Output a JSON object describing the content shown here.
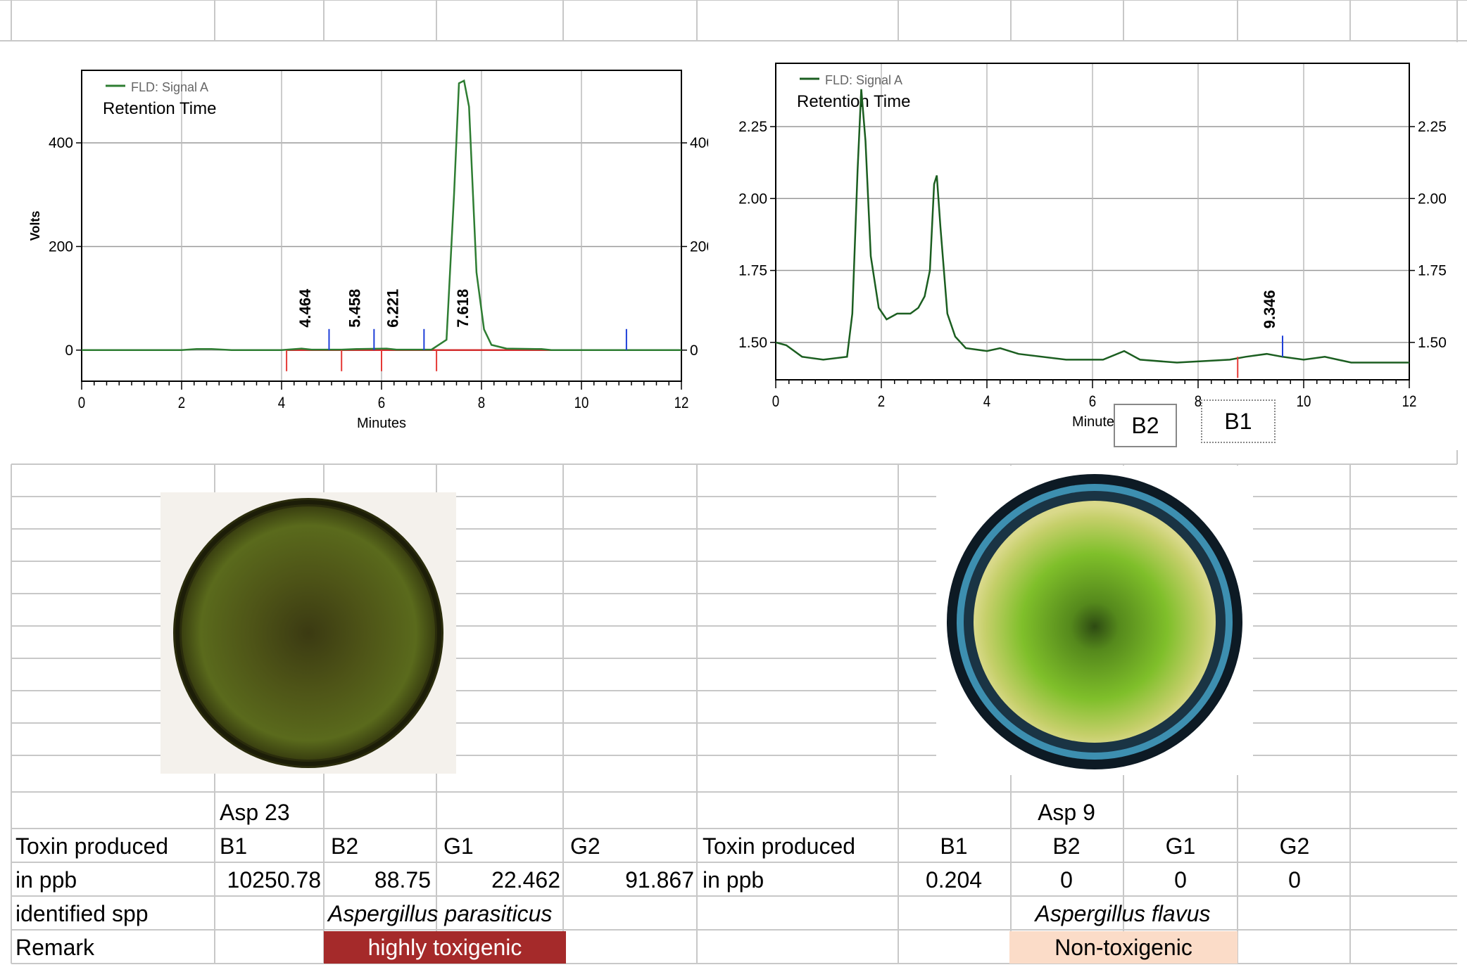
{
  "chart_data": [
    {
      "type": "line",
      "legend": "FLD: Signal A",
      "annotation": "Retention Time",
      "xlabel": "Minutes",
      "ylabel": "Volts",
      "xlim": [
        0,
        12
      ],
      "ylim": [
        -60,
        540
      ],
      "x_ticks": [
        0,
        2,
        4,
        6,
        8,
        10,
        12
      ],
      "y_ticks": [
        0,
        200,
        400
      ],
      "series_color": "#2e7d32",
      "peak_labels": [
        {
          "label": "4.464",
          "x": 4.464
        },
        {
          "label": "5.458",
          "x": 5.458
        },
        {
          "label": "6.221",
          "x": 6.221
        },
        {
          "label": "7.618",
          "x": 7.618
        }
      ],
      "red_markers_x": [
        4.1,
        5.2,
        6.0,
        7.1
      ],
      "blue_markers_x": [
        4.95,
        5.85,
        6.85,
        10.9
      ],
      "points": [
        [
          0,
          0
        ],
        [
          2,
          0
        ],
        [
          2.3,
          2
        ],
        [
          2.6,
          2
        ],
        [
          3,
          0
        ],
        [
          4,
          0
        ],
        [
          4.4,
          3
        ],
        [
          4.6,
          1
        ],
        [
          5.2,
          1
        ],
        [
          5.5,
          2
        ],
        [
          6.1,
          3
        ],
        [
          6.3,
          1
        ],
        [
          7.0,
          1
        ],
        [
          7.3,
          20
        ],
        [
          7.45,
          300
        ],
        [
          7.55,
          515
        ],
        [
          7.65,
          520
        ],
        [
          7.75,
          470
        ],
        [
          7.9,
          150
        ],
        [
          8.05,
          40
        ],
        [
          8.2,
          10
        ],
        [
          8.5,
          3
        ],
        [
          9.2,
          2
        ],
        [
          9.4,
          0
        ],
        [
          12,
          0
        ]
      ]
    },
    {
      "type": "line",
      "legend": "FLD: Signal A",
      "annotation": "Retention Time",
      "xlabel": "Minutes",
      "xlim": [
        0,
        12
      ],
      "ylim": [
        1.37,
        2.47
      ],
      "x_ticks": [
        0,
        2,
        4,
        6,
        8,
        10,
        12
      ],
      "y_ticks": [
        1.5,
        1.75,
        2.0,
        2.25
      ],
      "series_color": "#1b5e20",
      "peak_labels": [
        {
          "label": "9.346",
          "x": 9.346
        }
      ],
      "red_markers_x": [
        8.75
      ],
      "blue_markers_x": [
        9.6
      ],
      "points": [
        [
          0,
          1.5
        ],
        [
          0.2,
          1.49
        ],
        [
          0.5,
          1.45
        ],
        [
          0.9,
          1.44
        ],
        [
          1.35,
          1.45
        ],
        [
          1.45,
          1.6
        ],
        [
          1.55,
          2.1
        ],
        [
          1.62,
          2.38
        ],
        [
          1.7,
          2.2
        ],
        [
          1.8,
          1.8
        ],
        [
          1.95,
          1.62
        ],
        [
          2.1,
          1.58
        ],
        [
          2.3,
          1.6
        ],
        [
          2.55,
          1.6
        ],
        [
          2.7,
          1.62
        ],
        [
          2.82,
          1.66
        ],
        [
          2.92,
          1.75
        ],
        [
          3.0,
          2.05
        ],
        [
          3.05,
          2.08
        ],
        [
          3.12,
          1.9
        ],
        [
          3.25,
          1.6
        ],
        [
          3.4,
          1.52
        ],
        [
          3.6,
          1.48
        ],
        [
          4.0,
          1.47
        ],
        [
          4.25,
          1.48
        ],
        [
          4.6,
          1.46
        ],
        [
          5.5,
          1.44
        ],
        [
          6.2,
          1.44
        ],
        [
          6.6,
          1.47
        ],
        [
          6.9,
          1.44
        ],
        [
          7.6,
          1.43
        ],
        [
          8.6,
          1.44
        ],
        [
          8.9,
          1.45
        ],
        [
          9.3,
          1.46
        ],
        [
          9.6,
          1.45
        ],
        [
          10.0,
          1.44
        ],
        [
          10.4,
          1.45
        ],
        [
          10.9,
          1.43
        ],
        [
          12,
          1.43
        ]
      ],
      "legend_boxes": [
        {
          "label": "B2",
          "style": "solid"
        },
        {
          "label": "B1",
          "style": "dotted"
        }
      ]
    }
  ],
  "left_sample": {
    "name": "Asp 23",
    "toxin_label": "Toxin produced",
    "units_label": "in ppb",
    "toxins": [
      "B1",
      "B2",
      "G1",
      "G2"
    ],
    "values": [
      "10250.78",
      "88.75",
      "22.462",
      "91.867"
    ],
    "identified_label": "identified spp",
    "species": "Aspergillus parasiticus",
    "remark_label": "Remark",
    "remark": "highly toxigenic",
    "remark_color": "#a52a2a"
  },
  "right_sample": {
    "name": "Asp 9",
    "toxin_label": "Toxin produced",
    "units_label": "in ppb",
    "toxins": [
      "B1",
      "B2",
      "G1",
      "G2"
    ],
    "values": [
      "0.204",
      "0",
      "0",
      "0"
    ],
    "species": "Aspergillus flavus",
    "remark": "Non-toxigenic",
    "remark_color": "#fbdcc8"
  }
}
